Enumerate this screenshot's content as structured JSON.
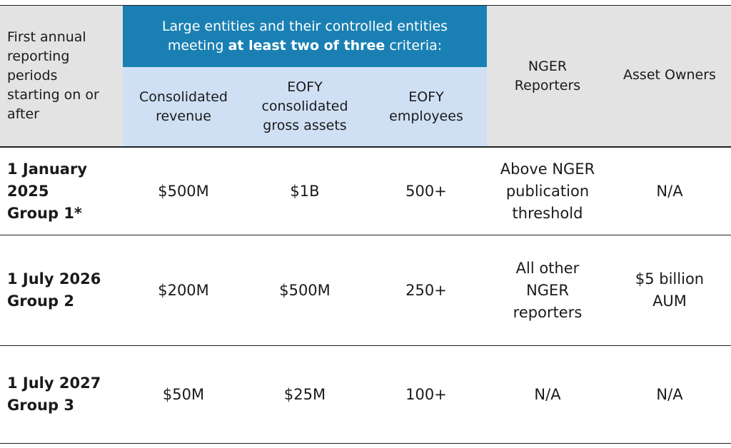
{
  "header": {
    "first_col": [
      "First annual",
      "reporting",
      "periods",
      "starting on or",
      "after"
    ],
    "group_top_line1": "Large entities and their controlled entities",
    "group_top_line2_pre": "meeting ",
    "group_top_line2_bold": "at least two of three",
    "group_top_line2_post": " criteria:",
    "consolidated_revenue": [
      "Consolidated",
      "revenue"
    ],
    "gross_assets": [
      "EOFY",
      "consolidated",
      "gross assets"
    ],
    "employees": [
      "EOFY",
      "employees"
    ],
    "nger": [
      "NGER",
      "Reporters"
    ],
    "asset_owners": "Asset Owners"
  },
  "rows": [
    {
      "label": [
        "1 January",
        "2025",
        "Group 1*"
      ],
      "revenue": "$500M",
      "assets": "$1B",
      "employees": "500+",
      "nger": [
        "Above NGER",
        "publication",
        "threshold"
      ],
      "asset_owners": [
        "N/A"
      ]
    },
    {
      "label": [
        "1 July 2026",
        "Group 2"
      ],
      "revenue": "$200M",
      "assets": "$500M",
      "employees": "250+",
      "nger": [
        "All other",
        "NGER",
        "reporters"
      ],
      "asset_owners": [
        "$5 billion",
        "AUM"
      ]
    },
    {
      "label": [
        "1 July 2027",
        "Group 3"
      ],
      "revenue": "$50M",
      "assets": "$25M",
      "employees": "100+",
      "nger": [
        "N/A"
      ],
      "asset_owners": [
        "N/A"
      ]
    }
  ]
}
